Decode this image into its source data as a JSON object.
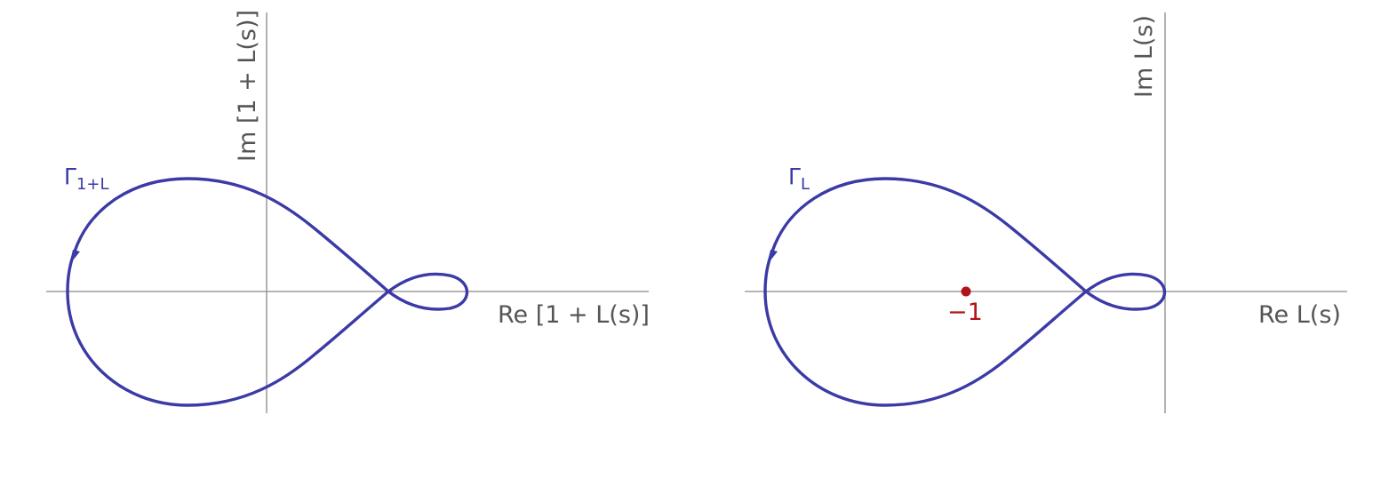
{
  "left_plot": {
    "curve_label_base": "Γ",
    "curve_label_sub": "1+L",
    "x_axis_label": "Re [1 + L(s)]",
    "y_axis_label": "Im [1 + L(s)]"
  },
  "right_plot": {
    "curve_label_base": "Γ",
    "curve_label_sub": "L",
    "x_axis_label": "Re L(s)",
    "y_axis_label": "Im L(s)",
    "critical_point_label": "−1"
  },
  "colors": {
    "curve": "#3b3aa6",
    "axis": "#8a8a8a",
    "point": "#b0141a",
    "label": "#555555"
  }
}
